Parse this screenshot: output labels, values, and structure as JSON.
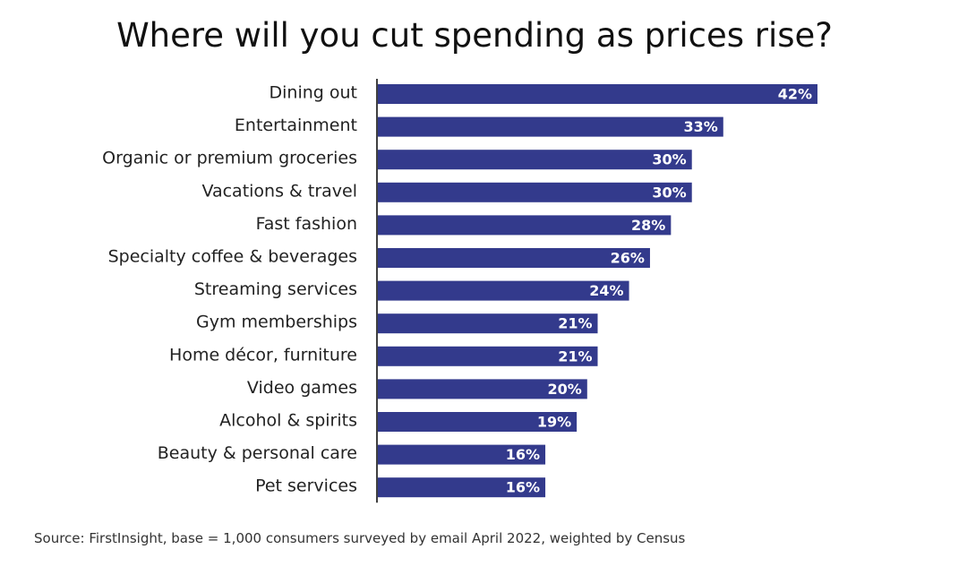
{
  "chart_data": {
    "type": "bar",
    "orientation": "horizontal",
    "title": "Where will you cut spending as prices rise?",
    "categories": [
      "Dining out",
      "Entertainment",
      "Organic or premium groceries",
      "Vacations & travel",
      "Fast fashion",
      "Specialty coffee & beverages",
      "Streaming services",
      "Gym memberships",
      "Home décor, furniture",
      "Video games",
      "Alcohol & spirits",
      "Beauty & personal care",
      "Pet services"
    ],
    "values": [
      42,
      33,
      30,
      30,
      28,
      26,
      24,
      21,
      21,
      20,
      19,
      16,
      16
    ],
    "value_suffix": "%",
    "xlim": [
      0,
      50
    ],
    "grid": false,
    "legend": "none",
    "bar_color": "#333a8c",
    "label_color": "#ffffff"
  },
  "source_text": "Source: FirstInsight, base = 1,000 consumers surveyed by email April 2022, weighted by Census"
}
